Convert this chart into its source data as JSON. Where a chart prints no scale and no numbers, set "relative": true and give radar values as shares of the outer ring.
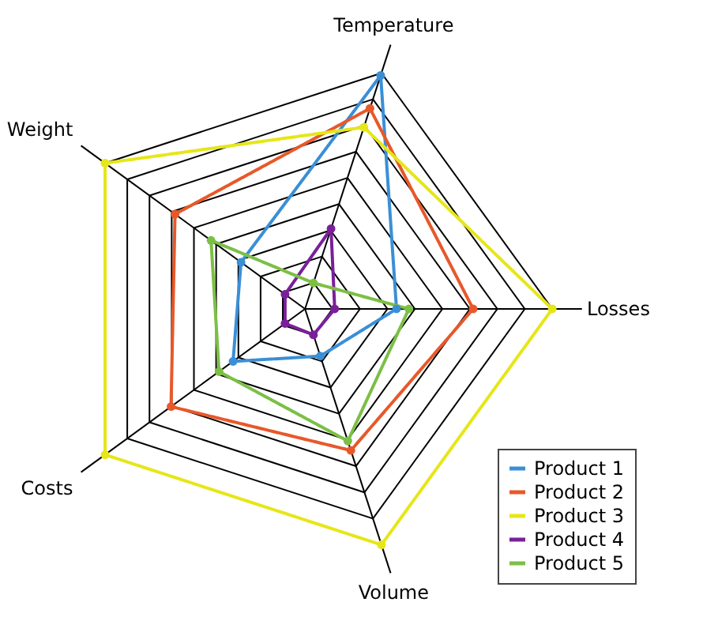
{
  "chart_data": {
    "type": "radar",
    "relative": true,
    "grid": true,
    "legend": "bottom right",
    "marker": "circle",
    "line_style": "solid",
    "categories": [
      "Temperature",
      "Losses",
      "Volume",
      "Costs",
      "Weight"
    ],
    "series": [
      {
        "name": "Product 1",
        "color": "#3a8fd6",
        "values": [
          0.99,
          0.37,
          0.2,
          0.36,
          0.32
        ]
      },
      {
        "name": "Product 2",
        "color": "#e8582a",
        "values": [
          0.85,
          0.68,
          0.6,
          0.67,
          0.65
        ]
      },
      {
        "name": "Product 3",
        "color": "#e6e619",
        "values": [
          0.77,
          1.0,
          1.0,
          1.0,
          1.0
        ]
      },
      {
        "name": "Product 4",
        "color": "#7a1f9a",
        "values": [
          0.34,
          0.12,
          0.11,
          0.1,
          0.1
        ]
      },
      {
        "name": "Product 5",
        "color": "#7cbf45",
        "values": [
          0.11,
          0.42,
          0.56,
          0.43,
          0.47
        ]
      }
    ]
  }
}
